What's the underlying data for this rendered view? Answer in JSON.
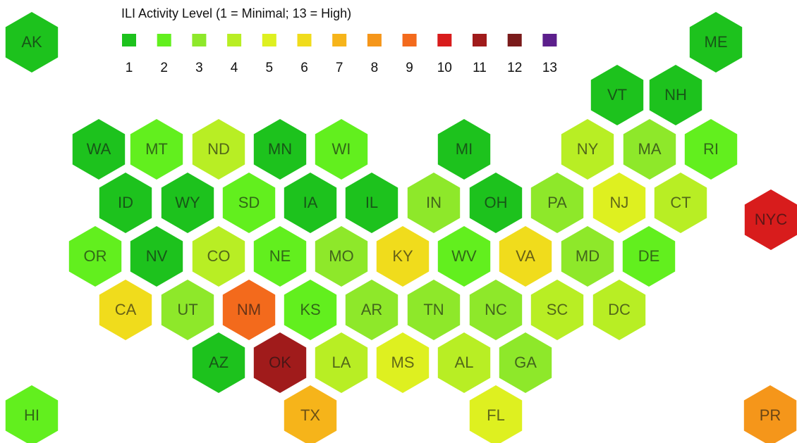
{
  "chart_data": {
    "type": "hexmap",
    "title": "ILI Activity Level  (1 = Minimal; 13 = High)",
    "levels": [
      1,
      2,
      3,
      4,
      5,
      6,
      7,
      8,
      9,
      10,
      11,
      12,
      13
    ],
    "colors": [
      "#1dc21d",
      "#62ef1e",
      "#8ee82a",
      "#b8ee24",
      "#def020",
      "#f0dc1c",
      "#f6b41a",
      "#f5961a",
      "#f36a1c",
      "#d81c1c",
      "#a01b1b",
      "#7a1b1b",
      "#5c1f8c"
    ],
    "states": [
      {
        "name": "AK",
        "level": 1
      },
      {
        "name": "ME",
        "level": 1
      },
      {
        "name": "VT",
        "level": 1
      },
      {
        "name": "NH",
        "level": 1
      },
      {
        "name": "WA",
        "level": 1
      },
      {
        "name": "MT",
        "level": 2
      },
      {
        "name": "ND",
        "level": 4
      },
      {
        "name": "MN",
        "level": 1
      },
      {
        "name": "WI",
        "level": 2
      },
      {
        "name": "MI",
        "level": 1
      },
      {
        "name": "NY",
        "level": 4
      },
      {
        "name": "MA",
        "level": 3
      },
      {
        "name": "RI",
        "level": 2
      },
      {
        "name": "ID",
        "level": 1
      },
      {
        "name": "WY",
        "level": 1
      },
      {
        "name": "SD",
        "level": 2
      },
      {
        "name": "IA",
        "level": 1
      },
      {
        "name": "IL",
        "level": 1
      },
      {
        "name": "IN",
        "level": 3
      },
      {
        "name": "OH",
        "level": 1
      },
      {
        "name": "PA",
        "level": 3
      },
      {
        "name": "NJ",
        "level": 5
      },
      {
        "name": "CT",
        "level": 4
      },
      {
        "name": "NYC",
        "level": 10
      },
      {
        "name": "OR",
        "level": 2
      },
      {
        "name": "NV",
        "level": 1
      },
      {
        "name": "CO",
        "level": 4
      },
      {
        "name": "NE",
        "level": 2
      },
      {
        "name": "MO",
        "level": 3
      },
      {
        "name": "KY",
        "level": 6
      },
      {
        "name": "WV",
        "level": 2
      },
      {
        "name": "VA",
        "level": 6
      },
      {
        "name": "MD",
        "level": 3
      },
      {
        "name": "DE",
        "level": 2
      },
      {
        "name": "CA",
        "level": 6
      },
      {
        "name": "UT",
        "level": 3
      },
      {
        "name": "NM",
        "level": 9
      },
      {
        "name": "KS",
        "level": 2
      },
      {
        "name": "AR",
        "level": 3
      },
      {
        "name": "TN",
        "level": 3
      },
      {
        "name": "NC",
        "level": 3
      },
      {
        "name": "SC",
        "level": 4
      },
      {
        "name": "DC",
        "level": 4
      },
      {
        "name": "AZ",
        "level": 1
      },
      {
        "name": "OK",
        "level": 11
      },
      {
        "name": "LA",
        "level": 4
      },
      {
        "name": "MS",
        "level": 5
      },
      {
        "name": "AL",
        "level": 4
      },
      {
        "name": "GA",
        "level": 3
      },
      {
        "name": "HI",
        "level": 2
      },
      {
        "name": "TX",
        "level": 7
      },
      {
        "name": "FL",
        "level": 5
      },
      {
        "name": "PR",
        "level": 8
      }
    ]
  }
}
